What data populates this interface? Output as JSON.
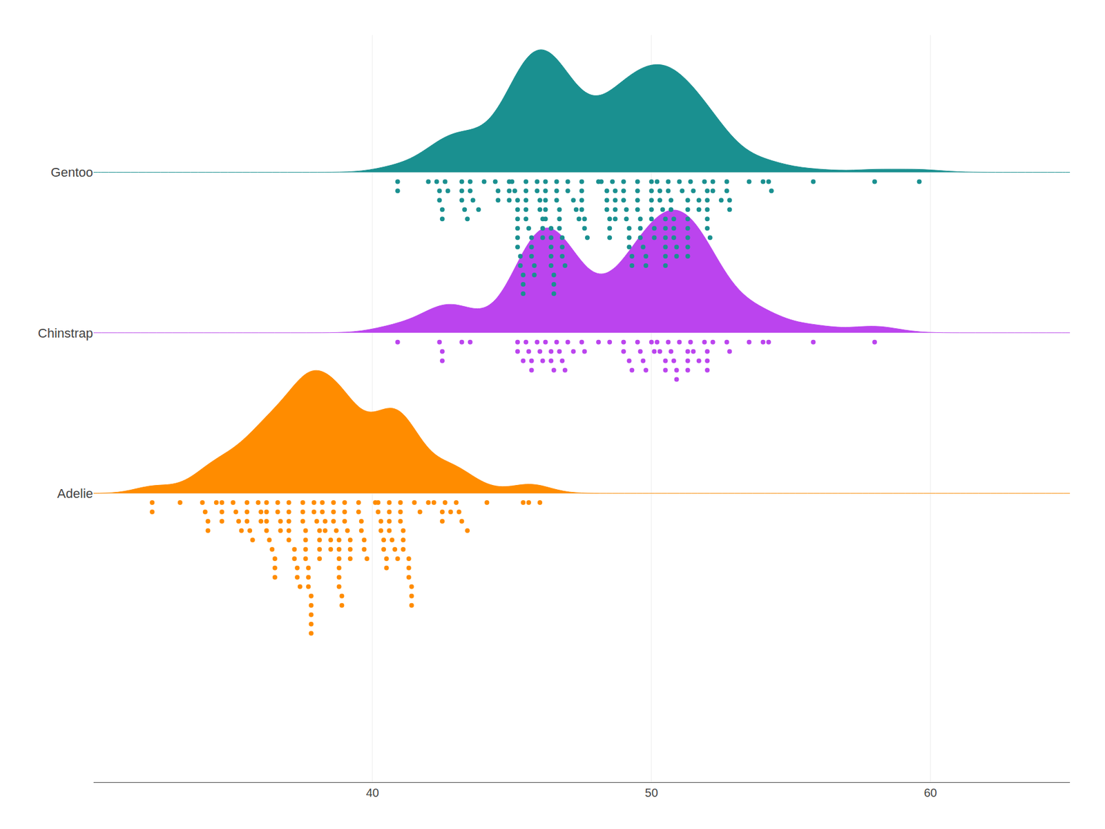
{
  "chart_data": {
    "type": "raincloud",
    "series": [
      {
        "name": "Adelie",
        "color": "#FF8C00",
        "values": [
          36.2,
          37.0,
          38.9,
          39.2,
          34.1,
          42.0,
          37.8,
          37.8,
          41.1,
          38.7,
          34.6,
          42.5,
          36.7,
          35.9,
          38.8,
          42.5,
          34.0,
          37.8,
          38.2,
          38.8,
          40.6,
          34.1,
          40.3,
          33.1,
          45.4,
          39.7,
          40.6,
          37.5,
          40.5,
          39.5,
          37.2,
          39.5,
          40.9,
          36.4,
          39.2,
          38.8,
          42.2,
          37.6,
          39.8,
          36.5,
          40.8,
          36.0,
          44.1,
          37.0,
          39.6,
          41.1,
          38.6,
          36.6,
          36.0,
          37.9,
          38.5,
          39.0,
          34.6,
          36.6,
          38.0,
          32.1,
          40.7,
          37.3,
          39.0,
          39.2,
          36.5,
          41.4,
          35.5,
          35.5,
          38.2,
          41.0,
          35.1,
          37.2,
          38.6,
          41.5,
          34.4,
          46.0,
          37.7,
          38.9,
          41.3,
          35.6,
          37.6,
          37.8,
          42.8,
          35.5,
          40.2,
          37.6,
          35.3,
          37.5,
          38.3,
          37.9,
          41.0,
          36.2,
          39.1,
          41.0,
          40.6,
          38.1,
          41.1,
          37.3,
          41.3,
          36.3,
          35.7,
          40.4,
          37.0,
          39.6,
          38.6,
          41.3,
          40.5,
          41.4,
          37.0,
          39.0,
          40.3,
          38.8,
          37.8,
          40.1,
          43.1,
          37.6,
          36.2,
          38.5,
          36.7,
          35.0,
          32.1,
          38.1,
          41.7,
          36.2,
          37.7,
          40.2,
          41.4,
          35.2,
          40.6,
          38.8,
          37.5,
          38.1,
          43.2,
          38.1,
          45.6,
          39.7,
          42.6,
          43.0,
          37.0,
          38.3,
          36.5,
          37.7,
          40.4,
          34.6,
          33.9,
          43.4,
          37.4,
          38.8
        ]
      },
      {
        "name": "Chinstrap",
        "color": "#BB44EE",
        "values": [
          46.5,
          50.0,
          51.3,
          45.4,
          52.7,
          45.2,
          46.1,
          51.3,
          46.0,
          51.3,
          46.6,
          51.7,
          47.0,
          52.0,
          45.9,
          50.5,
          50.3,
          58.0,
          46.4,
          49.2,
          42.4,
          48.5,
          43.2,
          50.6,
          46.7,
          52.0,
          50.5,
          49.5,
          46.4,
          52.8,
          40.9,
          54.2,
          42.5,
          51.0,
          49.7,
          47.5,
          47.6,
          52.0,
          46.9,
          53.5,
          49.0,
          46.2,
          50.9,
          45.5,
          50.9,
          50.8,
          50.1,
          49.0,
          51.5,
          49.8,
          48.1,
          51.4,
          45.7,
          50.7,
          42.5,
          52.2,
          45.2,
          49.3,
          50.2,
          45.6,
          51.9,
          46.8,
          45.7,
          55.8,
          43.5,
          49.6,
          54.0,
          47.2
        ]
      },
      {
        "name": "Gentoo",
        "color": "#1a9090",
        "values": [
          46.1,
          50.0,
          48.7,
          50.0,
          47.6,
          46.5,
          45.4,
          46.7,
          43.3,
          46.8,
          40.9,
          49.0,
          45.5,
          48.4,
          45.8,
          49.3,
          42.0,
          49.2,
          46.2,
          48.7,
          44.5,
          50.0,
          51.3,
          45.4,
          52.7,
          45.2,
          46.1,
          51.3,
          46.0,
          51.3,
          46.6,
          51.7,
          47.0,
          52.0,
          45.9,
          50.5,
          50.3,
          58.0,
          46.4,
          49.2,
          42.4,
          48.5,
          43.2,
          50.6,
          46.7,
          52.0,
          50.5,
          49.5,
          46.4,
          52.8,
          40.9,
          54.2,
          42.5,
          51.0,
          49.7,
          47.5,
          47.6,
          52.0,
          46.9,
          53.5,
          49.0,
          46.2,
          50.9,
          45.5,
          50.9,
          50.8,
          50.1,
          49.0,
          51.5,
          49.8,
          48.1,
          51.4,
          45.7,
          50.7,
          42.5,
          52.2,
          45.2,
          49.3,
          50.2,
          45.6,
          51.9,
          46.8,
          45.7,
          55.8,
          43.5,
          49.6,
          54.0,
          47.2,
          46.8,
          48.4,
          47.3,
          42.3,
          46.2,
          48.7,
          44.5,
          50.0,
          51.3,
          45.4,
          52.7,
          45.2,
          46.1,
          51.3,
          46.0,
          51.3,
          46.6,
          51.7,
          47.0,
          52.0,
          45.9,
          50.5,
          50.3,
          49.2,
          42.4,
          48.5,
          43.2,
          50.6,
          46.7,
          52.0,
          50.5,
          49.5,
          46.4,
          52.8,
          59.6,
          49.1,
          48.4,
          42.6,
          44.4,
          44.0,
          48.7,
          42.7,
          49.6,
          45.3,
          49.6,
          50.5,
          43.6,
          45.5,
          50.5,
          44.9,
          45.2,
          46.6,
          48.5,
          45.1,
          50.1,
          46.5,
          45.0,
          43.8,
          45.5,
          43.2,
          50.4,
          45.3,
          46.2,
          45.7,
          54.3,
          45.8,
          49.8,
          46.2,
          49.5,
          43.5,
          50.7,
          47.7,
          46.4,
          48.2,
          46.5,
          46.4,
          48.6,
          47.5,
          51.1,
          45.2,
          45.2,
          49.1,
          52.5,
          47.4,
          50.0,
          44.9,
          50.8,
          43.4,
          51.3,
          47.5,
          52.1,
          47.5,
          52.2,
          45.5,
          49.5,
          44.9,
          50.8
        ]
      }
    ],
    "xlim": [
      30,
      65
    ],
    "xticks": [
      40,
      50,
      60
    ],
    "grid": true
  }
}
